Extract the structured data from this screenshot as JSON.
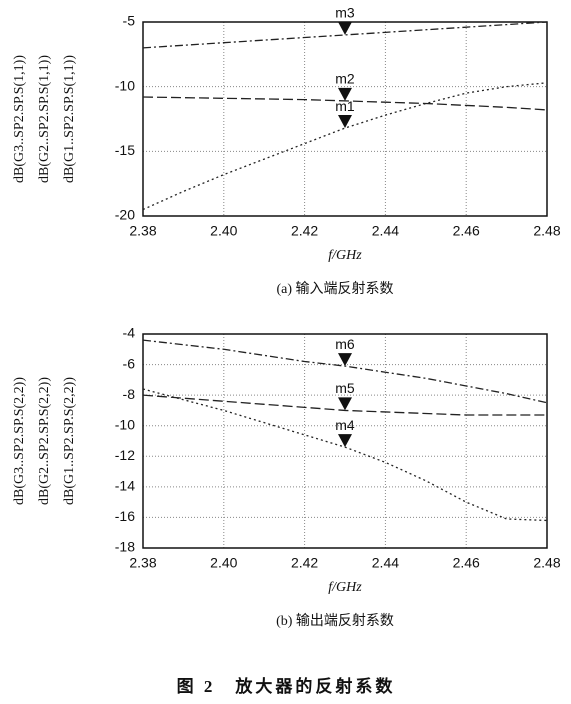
{
  "chart_data": [
    {
      "type": "line",
      "ylabel": [
        "dB(G3..SP2.SP.S(1,1))",
        "dB(G2..SP2.SP.S(1,1))",
        "dB(G1..SP2.SP.S(1,1))"
      ],
      "xlabel": "f/GHz",
      "caption": "(a) 输入端反射系数",
      "x": [
        2.38,
        2.39,
        2.4,
        2.41,
        2.42,
        2.43,
        2.44,
        2.45,
        2.46,
        2.47,
        2.48
      ],
      "series": [
        {
          "name": "G3",
          "color": "#222",
          "linestyle": "dashdot",
          "values": [
            -7,
            -6.8,
            -6.6,
            -6.4,
            -6.2,
            -6,
            -5.8,
            -5.6,
            -5.4,
            -5.2,
            -5
          ]
        },
        {
          "name": "G2",
          "color": "#222",
          "linestyle": "dashed",
          "values": [
            -10.8,
            -10.85,
            -10.9,
            -10.95,
            -11,
            -11.1,
            -11.2,
            -11.3,
            -11.45,
            -11.6,
            -11.8
          ]
        },
        {
          "name": "G1",
          "color": "#222",
          "linestyle": "dotted",
          "values": [
            -19.5,
            -18.1,
            -16.8,
            -15.6,
            -14.4,
            -13.2,
            -12.2,
            -11.3,
            -10.5,
            -10,
            -9.7
          ]
        }
      ],
      "markers": [
        {
          "name": "m1",
          "x": 2.43,
          "y": -13.2
        },
        {
          "name": "m2",
          "x": 2.43,
          "y": -11.1
        },
        {
          "name": "m3",
          "x": 2.43,
          "y": -6
        }
      ],
      "xlim": [
        2.38,
        2.48
      ],
      "xticks": [
        2.38,
        {
          "value": 2.4,
          "label": "2.40"
        },
        2.42,
        2.44,
        2.46,
        2.48
      ],
      "ylim": [
        -20,
        -5
      ],
      "yticks": [
        -20,
        -15,
        -10,
        -5
      ],
      "grid": true
    },
    {
      "type": "line",
      "ylabel": [
        "dB(G3..SP2.SP.S(2,2))",
        "dB(G2..SP2.SP.S(2,2))",
        "dB(G1..SP2.SP.S(2,2))"
      ],
      "xlabel": "f/GHz",
      "caption": "(b) 输出端反射系数",
      "x": [
        2.38,
        2.39,
        2.4,
        2.41,
        2.42,
        2.43,
        2.44,
        2.45,
        2.46,
        2.47,
        2.48
      ],
      "series": [
        {
          "name": "G3",
          "color": "#222",
          "linestyle": "dashdot",
          "values": [
            -4.4,
            -4.7,
            -5,
            -5.4,
            -5.8,
            -6.1,
            -6.5,
            -6.9,
            -7.4,
            -7.9,
            -8.5
          ]
        },
        {
          "name": "G2",
          "color": "#222",
          "linestyle": "dashed",
          "values": [
            -8,
            -8.2,
            -8.4,
            -8.6,
            -8.8,
            -9,
            -9.1,
            -9.2,
            -9.3,
            -9.3,
            -9.3
          ]
        },
        {
          "name": "G1",
          "color": "#222",
          "linestyle": "dotted",
          "values": [
            -7.6,
            -8.3,
            -9,
            -9.8,
            -10.6,
            -11.4,
            -12.4,
            -13.6,
            -15,
            -16.1,
            -16.2
          ]
        }
      ],
      "markers": [
        {
          "name": "m4",
          "x": 2.43,
          "y": -11.4
        },
        {
          "name": "m5",
          "x": 2.43,
          "y": -9
        },
        {
          "name": "m6",
          "x": 2.43,
          "y": -6.1
        }
      ],
      "xlim": [
        2.38,
        2.48
      ],
      "xticks": [
        2.38,
        {
          "value": 2.4,
          "label": "2.40"
        },
        2.42,
        2.44,
        2.46,
        2.48
      ],
      "ylim": [
        -18,
        -4
      ],
      "yticks": [
        -18,
        -16,
        -14,
        -12,
        -10,
        -8,
        -6,
        -4
      ],
      "grid": true
    }
  ],
  "figure_caption": "图 2　放大器的反射系数"
}
